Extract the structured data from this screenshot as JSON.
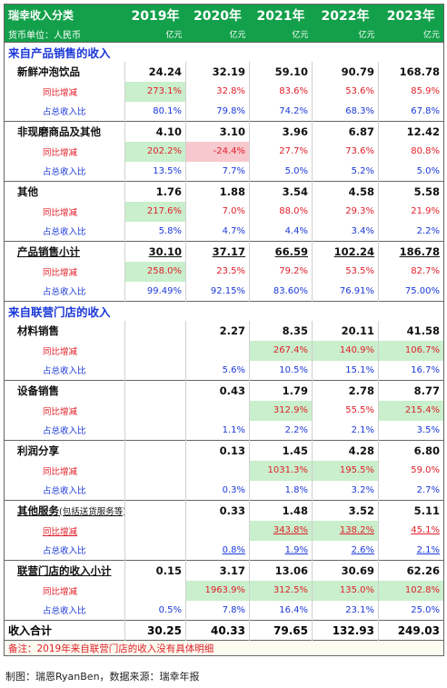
{
  "title": "瑞幸收入分类",
  "currency_label": "货币单位：人民币",
  "years": [
    "2019年",
    "2020年",
    "2021年",
    "2022年",
    "2023年"
  ],
  "unit": "亿元",
  "section_product": "来自产品销售的收入",
  "section_partner": "来自联营门店的收入",
  "yoy_label": "同比增减",
  "share_label": "占总收入比",
  "fresh": {
    "label": "新鲜冲泡饮品",
    "values": [
      "24.24",
      "32.19",
      "59.10",
      "90.79",
      "168.78"
    ],
    "yoy": [
      "273.1%",
      "32.8%",
      "83.6%",
      "53.6%",
      "85.9%"
    ],
    "share": [
      "80.1%",
      "79.8%",
      "74.2%",
      "68.3%",
      "67.8%"
    ]
  },
  "other_goods": {
    "label": "非现磨商品及其他",
    "values": [
      "4.10",
      "3.10",
      "3.96",
      "6.87",
      "12.42"
    ],
    "yoy": [
      "202.2%",
      "-24.4%",
      "27.7%",
      "73.6%",
      "80.8%"
    ],
    "share": [
      "13.5%",
      "7.7%",
      "5.0%",
      "5.2%",
      "5.0%"
    ]
  },
  "others": {
    "label": "其他",
    "values": [
      "1.76",
      "1.88",
      "3.54",
      "4.58",
      "5.58"
    ],
    "yoy": [
      "217.6%",
      "7.0%",
      "88.0%",
      "29.3%",
      "21.9%"
    ],
    "share": [
      "5.8%",
      "4.7%",
      "4.4%",
      "3.4%",
      "2.2%"
    ]
  },
  "product_subtotal": {
    "label": "产品销售小计",
    "values": [
      "30.10",
      "37.17",
      "66.59",
      "102.24",
      "186.78"
    ],
    "yoy": [
      "258.0%",
      "23.5%",
      "79.2%",
      "53.5%",
      "82.7%"
    ],
    "share": [
      "99.49%",
      "92.15%",
      "83.60%",
      "76.91%",
      "75.00%"
    ]
  },
  "materials": {
    "label": "材料销售",
    "values": [
      "",
      "2.27",
      "8.35",
      "20.11",
      "41.58"
    ],
    "yoy": [
      "",
      "",
      "267.4%",
      "140.9%",
      "106.7%"
    ],
    "share": [
      "",
      "5.6%",
      "10.5%",
      "15.1%",
      "16.7%"
    ]
  },
  "equipment": {
    "label": "设备销售",
    "values": [
      "",
      "0.43",
      "1.79",
      "2.78",
      "8.77"
    ],
    "yoy": [
      "",
      "",
      "312.9%",
      "55.5%",
      "215.4%"
    ],
    "share": [
      "",
      "1.1%",
      "2.2%",
      "2.1%",
      "3.5%"
    ]
  },
  "profit_share": {
    "label": "利润分享",
    "values": [
      "",
      "0.13",
      "1.45",
      "4.28",
      "6.80"
    ],
    "yoy": [
      "",
      "",
      "1031.3%",
      "195.5%",
      "59.0%"
    ],
    "share": [
      "",
      "0.3%",
      "1.8%",
      "3.2%",
      "2.7%"
    ]
  },
  "other_services": {
    "label": "其他服务",
    "label_note": "(包括送货服务等)",
    "values": [
      "",
      "0.33",
      "1.48",
      "3.52",
      "5.11"
    ],
    "yoy": [
      "",
      "",
      "343.8%",
      "138.2%",
      "45.1%"
    ],
    "share": [
      "",
      "0.8%",
      "1.9%",
      "2.6%",
      "2.1%"
    ]
  },
  "partner_subtotal": {
    "label": "联营门店的收入小计",
    "values": [
      "0.15",
      "3.17",
      "13.06",
      "30.69",
      "62.26"
    ],
    "yoy": [
      "",
      "1963.9%",
      "312.5%",
      "135.0%",
      "102.8%"
    ],
    "share": [
      "0.5%",
      "7.8%",
      "16.4%",
      "23.1%",
      "25.0%"
    ]
  },
  "total": {
    "label": "收入合计",
    "values": [
      "30.25",
      "40.33",
      "79.65",
      "132.93",
      "249.03"
    ]
  },
  "note": "备注：2019年来自联营门店的收入没有具体明细",
  "credit": "制图：瑞恩RyanBen，数据来源：瑞幸年报",
  "colors": {
    "header_green": "#13a04a",
    "highlight_green": "#c9efcc",
    "highlight_pink": "#f7c8cd",
    "section_blue": "#1b39d8",
    "yoy_red": "#e0202a"
  }
}
